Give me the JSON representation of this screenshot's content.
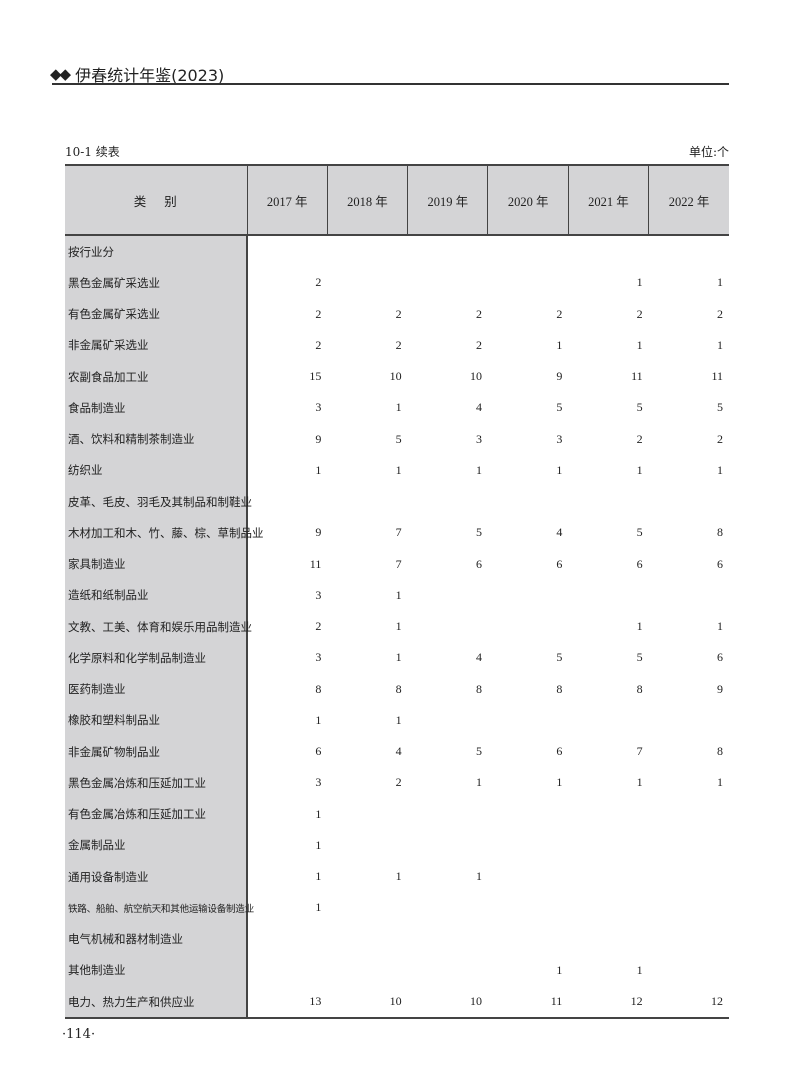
{
  "running_head": {
    "title": "伊春统计年鉴(2023)",
    "ornament": "◆◆"
  },
  "table": {
    "caption": "10-1 续表",
    "unit": "单位:个",
    "headers": [
      "类别",
      "2017 年",
      "2018 年",
      "2019 年",
      "2020 年",
      "2021 年",
      "2022 年"
    ],
    "rows": [
      {
        "category": "按行业分",
        "values": [
          "",
          "",
          "",
          "",
          "",
          ""
        ]
      },
      {
        "category": "黑色金属矿采选业",
        "values": [
          "2",
          "",
          "",
          "",
          "1",
          "1"
        ]
      },
      {
        "category": "有色金属矿采选业",
        "values": [
          "2",
          "2",
          "2",
          "2",
          "2",
          "2"
        ]
      },
      {
        "category": "非金属矿采选业",
        "values": [
          "2",
          "2",
          "2",
          "1",
          "1",
          "1"
        ]
      },
      {
        "category": "农副食品加工业",
        "values": [
          "15",
          "10",
          "10",
          "9",
          "11",
          "11"
        ]
      },
      {
        "category": "食品制造业",
        "values": [
          "3",
          "1",
          "4",
          "5",
          "5",
          "5"
        ]
      },
      {
        "category": "酒、饮料和精制茶制造业",
        "values": [
          "9",
          "5",
          "3",
          "3",
          "2",
          "2"
        ]
      },
      {
        "category": "纺织业",
        "values": [
          "1",
          "1",
          "1",
          "1",
          "1",
          "1"
        ]
      },
      {
        "category": "皮革、毛皮、羽毛及其制品和制鞋业",
        "values": [
          "",
          "",
          "",
          "",
          "",
          ""
        ]
      },
      {
        "category": "木材加工和木、竹、藤、棕、草制品业",
        "values": [
          "9",
          "7",
          "5",
          "4",
          "5",
          "8"
        ]
      },
      {
        "category": "家具制造业",
        "values": [
          "11",
          "7",
          "6",
          "6",
          "6",
          "6"
        ]
      },
      {
        "category": "造纸和纸制品业",
        "values": [
          "3",
          "1",
          "",
          "",
          "",
          ""
        ]
      },
      {
        "category": "文教、工美、体育和娱乐用品制造业",
        "values": [
          "2",
          "1",
          "",
          "",
          "1",
          "1"
        ]
      },
      {
        "category": "化学原料和化学制品制造业",
        "values": [
          "3",
          "1",
          "4",
          "5",
          "5",
          "6"
        ]
      },
      {
        "category": "医药制造业",
        "values": [
          "8",
          "8",
          "8",
          "8",
          "8",
          "9"
        ]
      },
      {
        "category": "橡胶和塑料制品业",
        "values": [
          "1",
          "1",
          "",
          "",
          "",
          ""
        ]
      },
      {
        "category": "非金属矿物制品业",
        "values": [
          "6",
          "4",
          "5",
          "6",
          "7",
          "8"
        ]
      },
      {
        "category": "黑色金属冶炼和压延加工业",
        "values": [
          "3",
          "2",
          "1",
          "1",
          "1",
          "1"
        ]
      },
      {
        "category": "有色金属冶炼和压延加工业",
        "values": [
          "1",
          "",
          "",
          "",
          "",
          ""
        ]
      },
      {
        "category": "金属制品业",
        "values": [
          "1",
          "",
          "",
          "",
          "",
          ""
        ]
      },
      {
        "category": "通用设备制造业",
        "values": [
          "1",
          "1",
          "1",
          "",
          "",
          ""
        ]
      },
      {
        "category": "铁路、船舶、航空航天和其他运输设备制造业",
        "values": [
          "1",
          "",
          "",
          "",
          "",
          ""
        ]
      },
      {
        "category": "电气机械和器材制造业",
        "values": [
          "",
          "",
          "",
          "",
          "",
          ""
        ]
      },
      {
        "category": "其他制造业",
        "values": [
          "",
          "",
          "",
          "1",
          "1",
          ""
        ]
      },
      {
        "category": "电力、热力生产和供应业",
        "values": [
          "13",
          "10",
          "10",
          "11",
          "12",
          "12"
        ]
      }
    ]
  },
  "page_number": "·114·",
  "colors": {
    "header_fill": "#d4d4d6",
    "rule": "#333333"
  }
}
